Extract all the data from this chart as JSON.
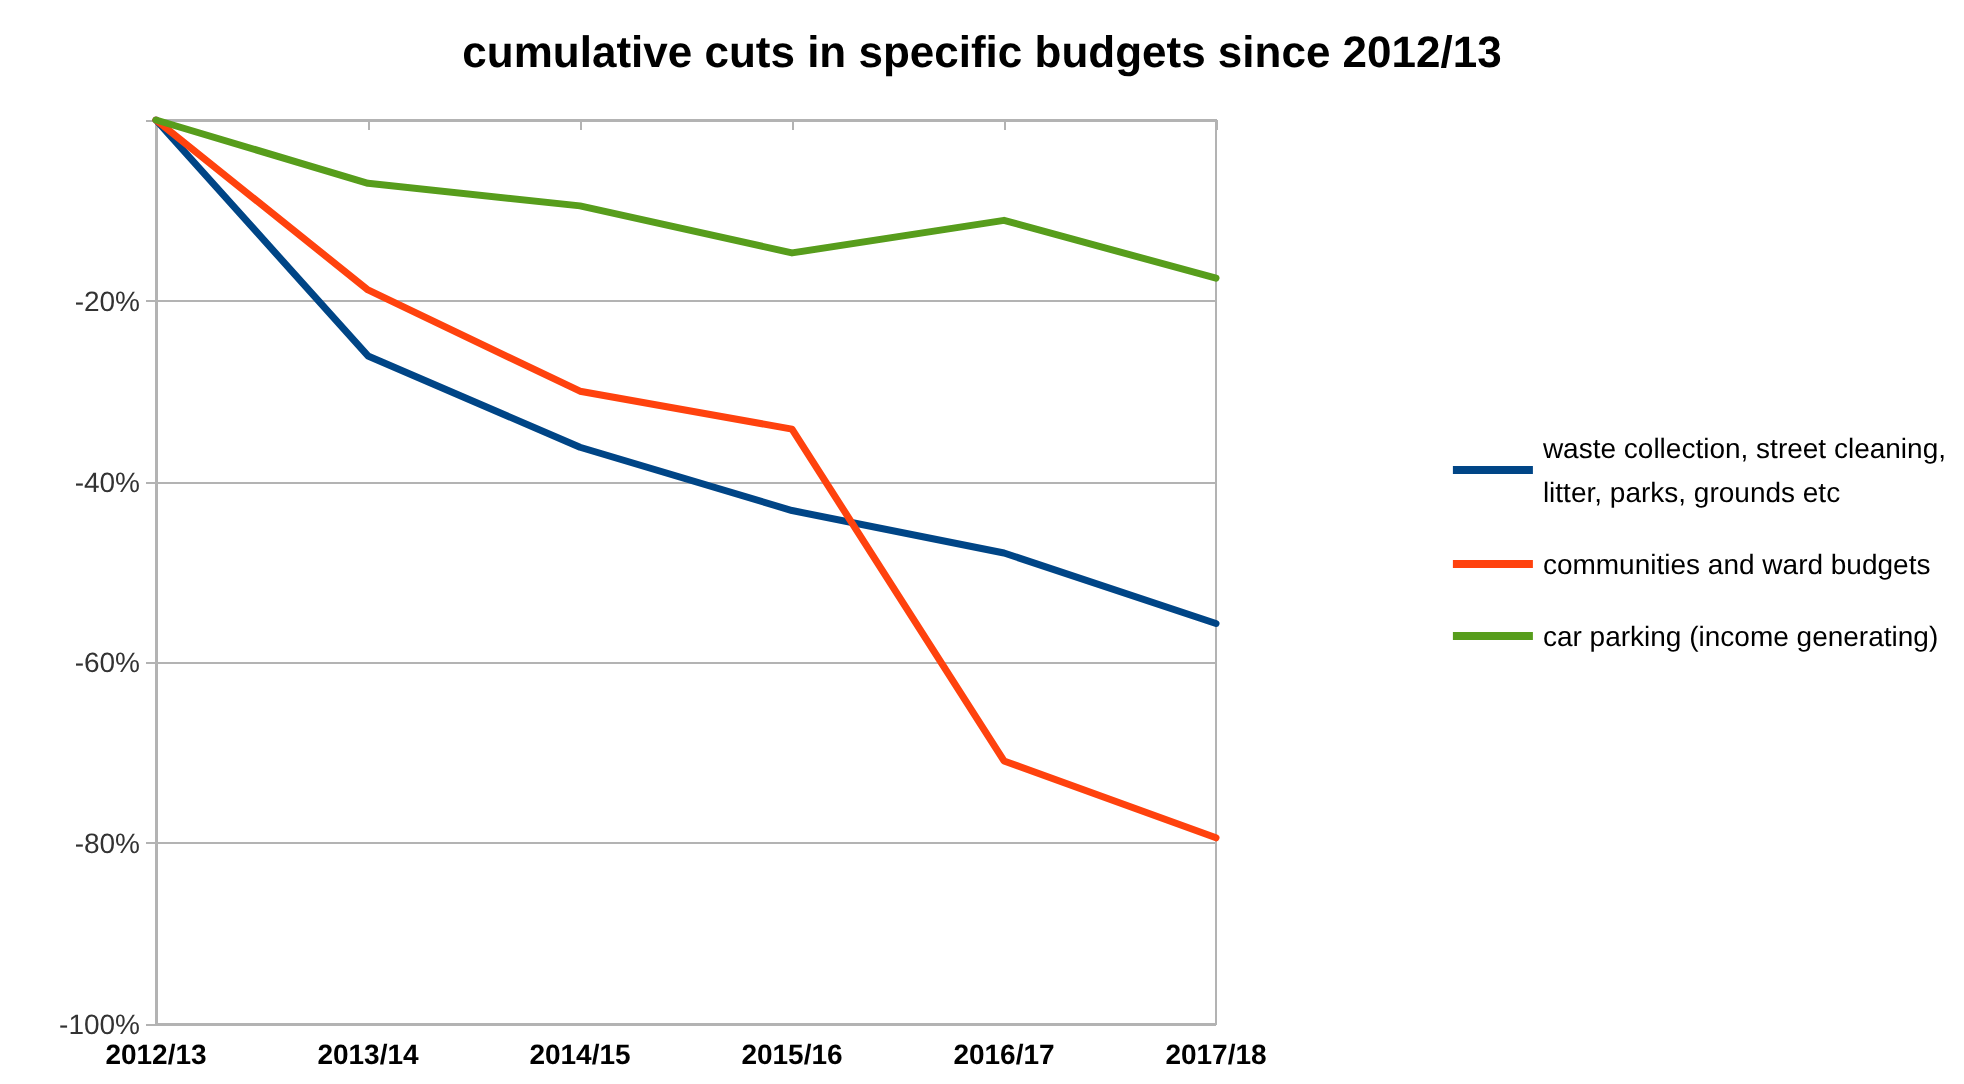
{
  "chart_data": {
    "type": "line",
    "title": "cumulative cuts in specific budgets since 2012/13",
    "categories": [
      "2012/13",
      "2013/14",
      "2014/15",
      "2015/16",
      "2016/17",
      "2017/18"
    ],
    "series": [
      {
        "name": "waste collection, street cleaning, litter, parks, grounds etc",
        "color": "#004586",
        "values": [
          0,
          -26.1,
          -36.2,
          -43.2,
          -47.9,
          -55.7
        ]
      },
      {
        "name": "communities and ward budgets",
        "color": "#ff420e",
        "values": [
          0,
          -18.8,
          -30.0,
          -34.2,
          -70.9,
          -79.4
        ]
      },
      {
        "name": "car parking (income generating)",
        "color": "#579d1c",
        "values": [
          0,
          -7.0,
          -9.5,
          -14.7,
          -11.1,
          -17.5
        ]
      }
    ],
    "ylim": [
      -100,
      0
    ],
    "yticks": [
      {
        "value": -100,
        "label": "-100%"
      },
      {
        "value": -80,
        "label": "-80%"
      },
      {
        "value": -60,
        "label": "-60%"
      },
      {
        "value": -40,
        "label": "-40%"
      },
      {
        "value": -20,
        "label": "-20%"
      },
      {
        "value": 0,
        "label": null
      }
    ],
    "grid": "y",
    "legend": "right",
    "marker": "none",
    "line_style": "solid"
  }
}
